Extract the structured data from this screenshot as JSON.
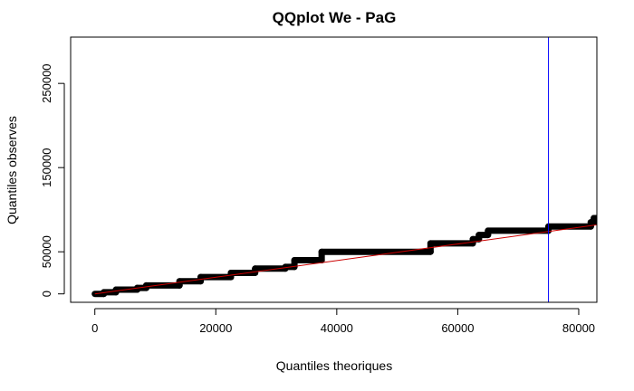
{
  "chart_data": {
    "type": "scatter",
    "title": "QQplot We - PaG",
    "xlabel": "Quantiles theoriques",
    "ylabel": "Quantiles observes",
    "xlim": [
      -4000,
      83000
    ],
    "ylim": [
      -10000,
      305000
    ],
    "x_ticks": [
      0,
      20000,
      40000,
      60000,
      80000
    ],
    "y_ticks": [
      0,
      50000,
      150000,
      250000
    ],
    "x_tick_labels": [
      "0",
      "20000",
      "40000",
      "60000",
      "80000"
    ],
    "y_tick_labels": [
      "0",
      "50000",
      "150000",
      "250000"
    ],
    "grid": false,
    "point_color": "#000000",
    "reference_line": {
      "color": "#cc0000",
      "x": [
        0,
        83000
      ],
      "y": [
        0,
        82000
      ]
    },
    "vertical_line": {
      "color": "#0000ff",
      "x": 75000
    },
    "steps": [
      {
        "x": [
          0,
          1500
        ],
        "y": 0
      },
      {
        "x": [
          1500,
          3500
        ],
        "y": 2000
      },
      {
        "x": [
          3500,
          7000
        ],
        "y": 5000
      },
      {
        "x": [
          7000,
          8500
        ],
        "y": 7000
      },
      {
        "x": [
          8500,
          14000
        ],
        "y": 10000
      },
      {
        "x": [
          14000,
          17500
        ],
        "y": 15000
      },
      {
        "x": [
          17500,
          22500
        ],
        "y": 20000
      },
      {
        "x": [
          22500,
          26500
        ],
        "y": 25000
      },
      {
        "x": [
          26500,
          31500
        ],
        "y": 30000
      },
      {
        "x": [
          31500,
          33000
        ],
        "y": 32000
      },
      {
        "x": [
          33000,
          37500
        ],
        "y": 40000
      },
      {
        "x": [
          37500,
          55500
        ],
        "y": 50000
      },
      {
        "x": [
          55500,
          62500
        ],
        "y": 60000
      },
      {
        "x": [
          62500,
          63500
        ],
        "y": 65000
      },
      {
        "x": [
          63500,
          65000
        ],
        "y": 70000
      },
      {
        "x": [
          65000,
          75000
        ],
        "y": 75000
      },
      {
        "x": [
          75000,
          82000
        ],
        "y": 80000
      },
      {
        "x": [
          82000,
          82500
        ],
        "y": 85000
      },
      {
        "x": [
          82500,
          83000
        ],
        "y": 90000
      }
    ]
  }
}
